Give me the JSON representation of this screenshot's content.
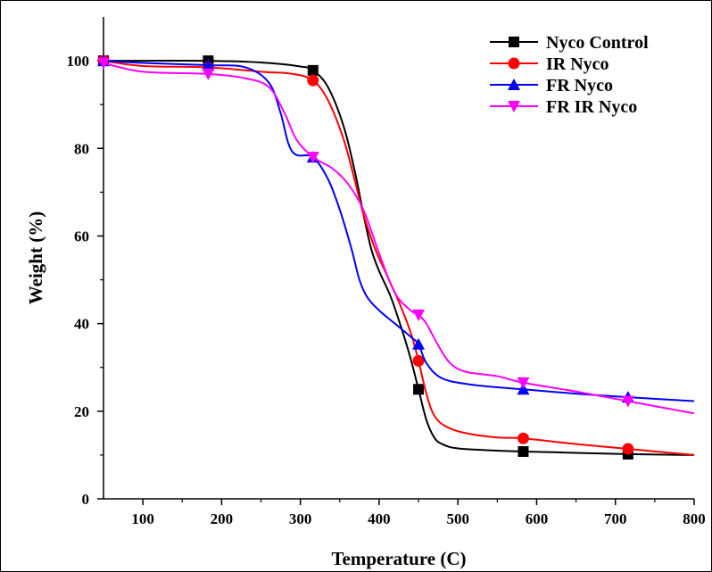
{
  "chart_data": {
    "type": "line",
    "title": "",
    "xlabel": "Temperature (C)",
    "ylabel": "Weight (%)",
    "xlim": [
      50,
      800
    ],
    "ylim": [
      0,
      110
    ],
    "x_ticks": [
      100,
      200,
      300,
      400,
      500,
      600,
      700,
      800
    ],
    "y_ticks": [
      0,
      20,
      40,
      60,
      80,
      100
    ],
    "grid": false,
    "legend_position": "top-right",
    "series": [
      {
        "name": "Nyco Control",
        "color": "#000000",
        "marker": "square",
        "curve": [
          [
            50,
            100
          ],
          [
            100,
            100
          ],
          [
            180,
            100
          ],
          [
            250,
            99.6
          ],
          [
            300,
            98.7
          ],
          [
            316,
            97.8
          ],
          [
            335,
            94
          ],
          [
            355,
            85
          ],
          [
            370,
            74
          ],
          [
            380,
            65
          ],
          [
            390,
            57
          ],
          [
            400,
            52
          ],
          [
            415,
            46
          ],
          [
            430,
            38
          ],
          [
            440,
            32
          ],
          [
            450,
            25
          ],
          [
            460,
            18
          ],
          [
            470,
            14
          ],
          [
            480,
            12.5
          ],
          [
            500,
            11.5
          ],
          [
            550,
            11
          ],
          [
            583,
            10.8
          ],
          [
            650,
            10.5
          ],
          [
            716,
            10.2
          ],
          [
            800,
            10
          ]
        ],
        "markers": [
          [
            50,
            100
          ],
          [
            183,
            100
          ],
          [
            316,
            97.8
          ],
          [
            450,
            25
          ],
          [
            583,
            10.8
          ],
          [
            716,
            10.2
          ]
        ]
      },
      {
        "name": "IR Nyco",
        "color": "#ff0000",
        "marker": "circle",
        "curve": [
          [
            50,
            100
          ],
          [
            100,
            98.8
          ],
          [
            183,
            98.5
          ],
          [
            250,
            97.5
          ],
          [
            290,
            97
          ],
          [
            316,
            95.5
          ],
          [
            335,
            91
          ],
          [
            355,
            82
          ],
          [
            370,
            72
          ],
          [
            380,
            65
          ],
          [
            395,
            57
          ],
          [
            410,
            51
          ],
          [
            425,
            45
          ],
          [
            440,
            38
          ],
          [
            450,
            31.5
          ],
          [
            460,
            24
          ],
          [
            470,
            19
          ],
          [
            485,
            16.5
          ],
          [
            510,
            15
          ],
          [
            550,
            14
          ],
          [
            583,
            13.8
          ],
          [
            650,
            12.5
          ],
          [
            716,
            11.4
          ],
          [
            800,
            10
          ]
        ],
        "markers": [
          [
            50,
            100
          ],
          [
            183,
            98.5
          ],
          [
            316,
            95.5
          ],
          [
            450,
            31.5
          ],
          [
            583,
            13.8
          ],
          [
            716,
            11.4
          ]
        ]
      },
      {
        "name": "FR Nyco",
        "color": "#0000ff",
        "marker": "triangle-up",
        "curve": [
          [
            50,
            100
          ],
          [
            100,
            99.5
          ],
          [
            183,
            99
          ],
          [
            230,
            98.5
          ],
          [
            260,
            95
          ],
          [
            275,
            88
          ],
          [
            285,
            81
          ],
          [
            295,
            78.5
          ],
          [
            316,
            78
          ],
          [
            335,
            73
          ],
          [
            350,
            66
          ],
          [
            365,
            57
          ],
          [
            375,
            50
          ],
          [
            385,
            46
          ],
          [
            400,
            43
          ],
          [
            420,
            40
          ],
          [
            440,
            37
          ],
          [
            450,
            35.3
          ],
          [
            460,
            31
          ],
          [
            480,
            27.5
          ],
          [
            520,
            26
          ],
          [
            583,
            25
          ],
          [
            650,
            24
          ],
          [
            716,
            23.2
          ],
          [
            800,
            22.3
          ]
        ],
        "markers": [
          [
            50,
            100
          ],
          [
            183,
            99
          ],
          [
            316,
            78
          ],
          [
            450,
            35.3
          ],
          [
            583,
            25
          ],
          [
            716,
            23.2
          ]
        ]
      },
      {
        "name": "FR IR Nyco",
        "color": "#ff00ff",
        "marker": "triangle-down",
        "curve": [
          [
            50,
            99.5
          ],
          [
            100,
            97.5
          ],
          [
            183,
            97
          ],
          [
            230,
            96
          ],
          [
            260,
            94
          ],
          [
            280,
            88
          ],
          [
            295,
            82
          ],
          [
            316,
            78
          ],
          [
            340,
            75.5
          ],
          [
            360,
            72
          ],
          [
            380,
            66
          ],
          [
            400,
            56
          ],
          [
            420,
            47
          ],
          [
            440,
            43
          ],
          [
            450,
            42
          ],
          [
            460,
            40
          ],
          [
            475,
            35
          ],
          [
            490,
            31
          ],
          [
            510,
            29
          ],
          [
            550,
            28
          ],
          [
            583,
            26.5
          ],
          [
            650,
            24.5
          ],
          [
            716,
            22.3
          ],
          [
            800,
            19.5
          ]
        ],
        "markers": [
          [
            50,
            99.5
          ],
          [
            183,
            97
          ],
          [
            316,
            78
          ],
          [
            450,
            42
          ],
          [
            583,
            26.5
          ],
          [
            716,
            22.3
          ]
        ]
      }
    ]
  }
}
